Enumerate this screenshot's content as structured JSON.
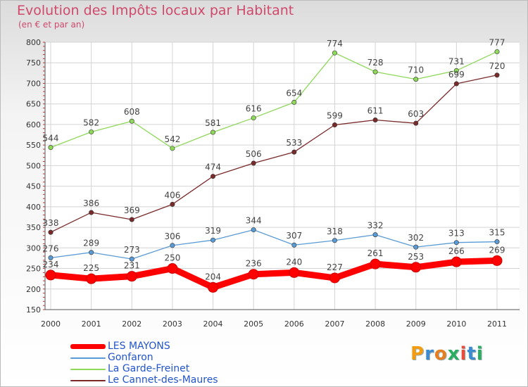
{
  "title": "Evolution des Impôts locaux par Habitant",
  "subtitle": "(en € et par an)",
  "brand": {
    "letters": [
      "P",
      "r",
      "o",
      "x",
      "i",
      "t",
      "i"
    ],
    "colors": [
      "#f39c12",
      "#3b8bd0",
      "#e67e22",
      "#27ae60",
      "#e74c3c",
      "#3b8bd0",
      "#27ae60"
    ]
  },
  "chart_data": {
    "type": "line",
    "x": [
      "2000",
      "2001",
      "2002",
      "2003",
      "2004",
      "2005",
      "2006",
      "2007",
      "2008",
      "2009",
      "2010",
      "2011"
    ],
    "ylim": [
      150,
      800
    ],
    "yticks": [
      150,
      200,
      250,
      300,
      350,
      400,
      450,
      500,
      550,
      600,
      650,
      700,
      750,
      800
    ],
    "grid": true,
    "legend_position": "bottom-left",
    "series": [
      {
        "name": "LES MAYONS",
        "color": "#ff0000",
        "values": [
          234,
          225,
          231,
          250,
          204,
          236,
          240,
          227,
          261,
          253,
          266,
          269
        ]
      },
      {
        "name": "Gonfaron",
        "color": "#5b9bd5",
        "values": [
          276,
          289,
          273,
          306,
          319,
          344,
          307,
          318,
          332,
          302,
          313,
          315
        ]
      },
      {
        "name": "La Garde-Freinet",
        "color": "#8ed85a",
        "values": [
          544,
          582,
          608,
          542,
          581,
          616,
          654,
          774,
          728,
          710,
          731,
          777
        ]
      },
      {
        "name": "Le Cannet-des-Maures",
        "color": "#7a2a2a",
        "values": [
          338,
          386,
          369,
          406,
          474,
          506,
          533,
          599,
          611,
          603,
          699,
          720
        ]
      }
    ]
  }
}
